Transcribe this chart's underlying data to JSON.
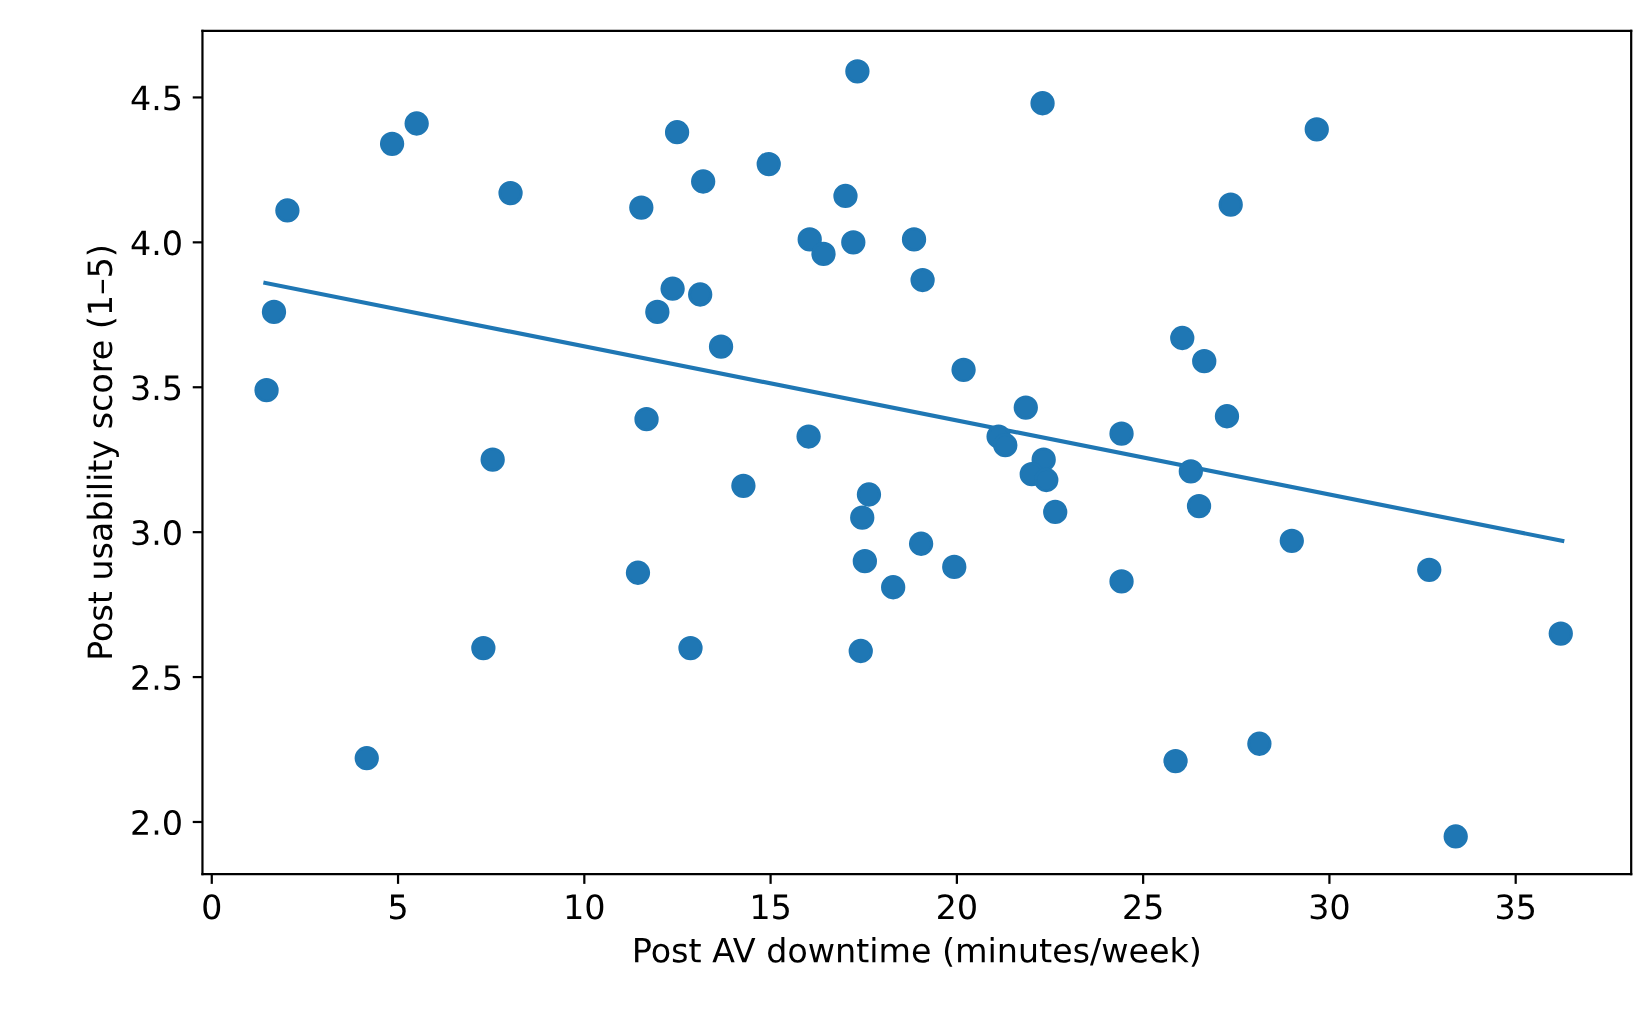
{
  "chart_data": {
    "type": "scatter",
    "xlabel": "Post AV downtime (minutes/week)",
    "ylabel": "Post usability score (1–5)",
    "xlim": [
      -0.25,
      38.1
    ],
    "ylim": [
      1.82,
      4.73
    ],
    "xticks": [
      0,
      5,
      10,
      15,
      20,
      25,
      30,
      35
    ],
    "yticks": [
      {
        "value": 2,
        "label": "2.0"
      },
      2.5,
      {
        "value": 3,
        "label": "3.0"
      },
      3.5,
      {
        "value": 4,
        "label": "4.0"
      },
      4.5
    ],
    "grid": false,
    "legend": false,
    "series": [
      {
        "marker": "circle",
        "color": "#1f77b4",
        "x": [
          2.03,
          1.67,
          1.47,
          4.84,
          5.5,
          4.16,
          8.02,
          7.54,
          7.29,
          12.49,
          13.19,
          11.53,
          12.37,
          13.11,
          11.96,
          11.67,
          11.44,
          12.85,
          13.67,
          14.95,
          17.33,
          22.3,
          17.01,
          16.05,
          16.42,
          17.22,
          18.85,
          19.08,
          20.18,
          21.85,
          21.12,
          21.3,
          22.33,
          22.01,
          22.4,
          22.64,
          24.42,
          24.42,
          16.02,
          14.27,
          17.64,
          17.46,
          17.53,
          19.04,
          19.93,
          18.29,
          17.42,
          29.66,
          27.35,
          26.05,
          26.64,
          27.25,
          26.28,
          26.5,
          28.99,
          32.68,
          36.21,
          25.87,
          28.12,
          33.39
        ],
        "values": [
          4.11,
          3.76,
          3.49,
          4.34,
          4.41,
          2.22,
          4.17,
          3.25,
          2.6,
          4.38,
          4.21,
          4.12,
          3.84,
          3.82,
          3.76,
          3.39,
          2.86,
          2.6,
          3.64,
          4.27,
          4.59,
          4.48,
          4.16,
          4.01,
          3.96,
          4.0,
          4.01,
          3.87,
          3.56,
          3.43,
          3.33,
          3.3,
          3.25,
          3.2,
          3.18,
          3.07,
          3.34,
          2.83,
          3.33,
          3.16,
          3.13,
          3.05,
          2.9,
          2.96,
          2.88,
          2.81,
          2.59,
          4.39,
          4.13,
          3.67,
          3.59,
          3.4,
          3.21,
          3.09,
          2.97,
          2.87,
          2.65,
          2.21,
          2.27,
          1.95
        ]
      },
      {
        "type": "line",
        "color": "#1f77b4",
        "x": [
          1.44,
          36.25
        ],
        "values": [
          3.86,
          2.97
        ]
      }
    ]
  }
}
